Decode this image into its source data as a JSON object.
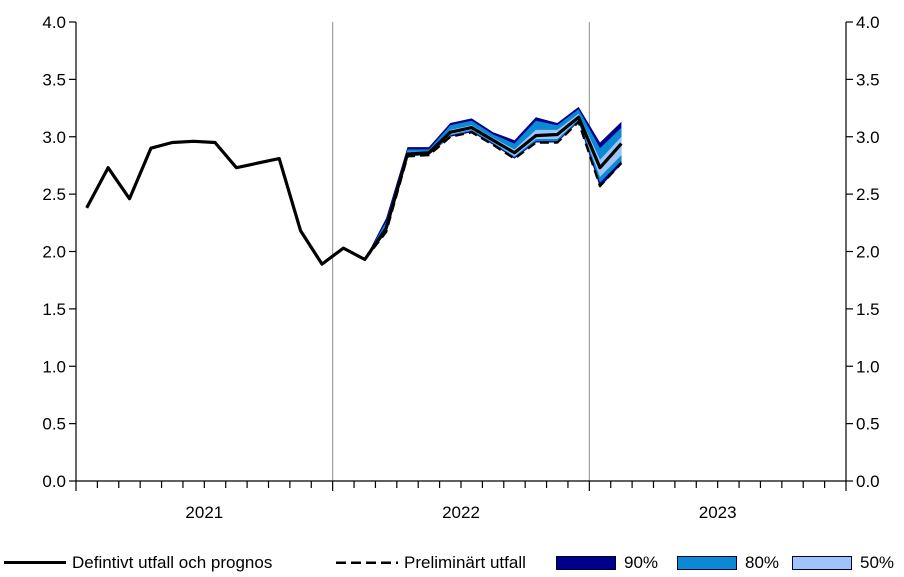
{
  "chart_data": {
    "type": "line",
    "title": "",
    "xlabel": "",
    "ylabel": "",
    "ylim": [
      0,
      4
    ],
    "yticks": [
      "0.0",
      "0.5",
      "1.0",
      "1.5",
      "2.0",
      "2.5",
      "3.0",
      "3.5",
      "4.0"
    ],
    "year_labels": [
      "2021",
      "2022",
      "2023"
    ],
    "x_months": [
      "2021-01",
      "2021-02",
      "2021-03",
      "2021-04",
      "2021-05",
      "2021-06",
      "2021-07",
      "2021-08",
      "2021-09",
      "2021-10",
      "2021-11",
      "2021-12",
      "2022-01",
      "2022-02",
      "2022-03",
      "2022-04",
      "2022-05",
      "2022-06",
      "2022-07",
      "2022-08",
      "2022-09",
      "2022-10",
      "2022-11",
      "2022-12",
      "2023-01",
      "2023-02",
      "2023-03",
      "2023-04",
      "2023-05",
      "2023-06",
      "2023-07",
      "2023-08",
      "2023-09",
      "2023-10",
      "2023-11",
      "2023-12"
    ],
    "series": [
      {
        "name": "Defintivt utfall och prognos",
        "style": "solid",
        "color": "#000000",
        "values": [
          2.38,
          2.73,
          2.46,
          2.9,
          2.95,
          2.96,
          2.95,
          2.73,
          2.77,
          2.81,
          2.18,
          1.89,
          2.03,
          1.93,
          2.2,
          2.85,
          2.86,
          3.04,
          3.08,
          2.97,
          2.86,
          3.01,
          3.02,
          3.17,
          2.73,
          2.94,
          null,
          null,
          null,
          null,
          null,
          null,
          null,
          null,
          null,
          null
        ]
      },
      {
        "name": "Preliminärt utfall",
        "style": "dashed",
        "color": "#000000",
        "values": [
          null,
          null,
          null,
          null,
          null,
          null,
          null,
          null,
          null,
          null,
          null,
          null,
          null,
          1.93,
          2.17,
          2.83,
          2.84,
          3.0,
          3.04,
          2.93,
          2.81,
          2.95,
          2.95,
          3.13,
          2.57,
          2.77,
          null,
          null,
          null,
          null,
          null,
          null,
          null,
          null,
          null,
          null
        ]
      }
    ],
    "bands": [
      {
        "name": "90%",
        "color": "#00008B",
        "lower": [
          null,
          null,
          null,
          null,
          null,
          null,
          null,
          null,
          null,
          null,
          null,
          null,
          null,
          1.93,
          2.16,
          2.83,
          2.84,
          3.0,
          3.04,
          2.93,
          2.81,
          2.95,
          2.95,
          3.13,
          2.56,
          2.76,
          null,
          null,
          null,
          null,
          null,
          null,
          null,
          null,
          null,
          null
        ],
        "upper": [
          null,
          null,
          null,
          null,
          null,
          null,
          null,
          null,
          null,
          null,
          null,
          null,
          null,
          1.93,
          2.29,
          2.91,
          2.91,
          3.12,
          3.16,
          3.04,
          2.97,
          3.17,
          3.12,
          3.26,
          2.95,
          3.13,
          null,
          null,
          null,
          null,
          null,
          null,
          null,
          null,
          null,
          null
        ]
      },
      {
        "name": "80%",
        "color": "#0A8AD4",
        "lower": [
          null,
          null,
          null,
          null,
          null,
          null,
          null,
          null,
          null,
          null,
          null,
          null,
          null,
          1.93,
          2.17,
          2.84,
          2.84,
          3.01,
          3.05,
          2.94,
          2.82,
          2.96,
          2.96,
          3.14,
          2.6,
          2.79,
          null,
          null,
          null,
          null,
          null,
          null,
          null,
          null,
          null,
          null
        ],
        "upper": [
          null,
          null,
          null,
          null,
          null,
          null,
          null,
          null,
          null,
          null,
          null,
          null,
          null,
          1.93,
          2.26,
          2.89,
          2.89,
          3.1,
          3.14,
          3.02,
          2.94,
          3.14,
          3.1,
          3.24,
          2.9,
          3.08,
          null,
          null,
          null,
          null,
          null,
          null,
          null,
          null,
          null,
          null
        ]
      },
      {
        "name": "50%",
        "color": "#9FC5F8",
        "lower": [
          null,
          null,
          null,
          null,
          null,
          null,
          null,
          null,
          null,
          null,
          null,
          null,
          null,
          1.93,
          2.18,
          2.84,
          2.85,
          3.02,
          3.06,
          2.95,
          2.83,
          2.98,
          2.98,
          3.15,
          2.65,
          2.84,
          null,
          null,
          null,
          null,
          null,
          null,
          null,
          null,
          null,
          null
        ],
        "upper": [
          null,
          null,
          null,
          null,
          null,
          null,
          null,
          null,
          null,
          null,
          null,
          null,
          null,
          1.93,
          2.22,
          2.87,
          2.87,
          3.06,
          3.1,
          2.99,
          2.89,
          3.06,
          3.06,
          3.2,
          2.8,
          3.0,
          null,
          null,
          null,
          null,
          null,
          null,
          null,
          null,
          null,
          null
        ]
      }
    ],
    "legend_placement": "bottom"
  }
}
